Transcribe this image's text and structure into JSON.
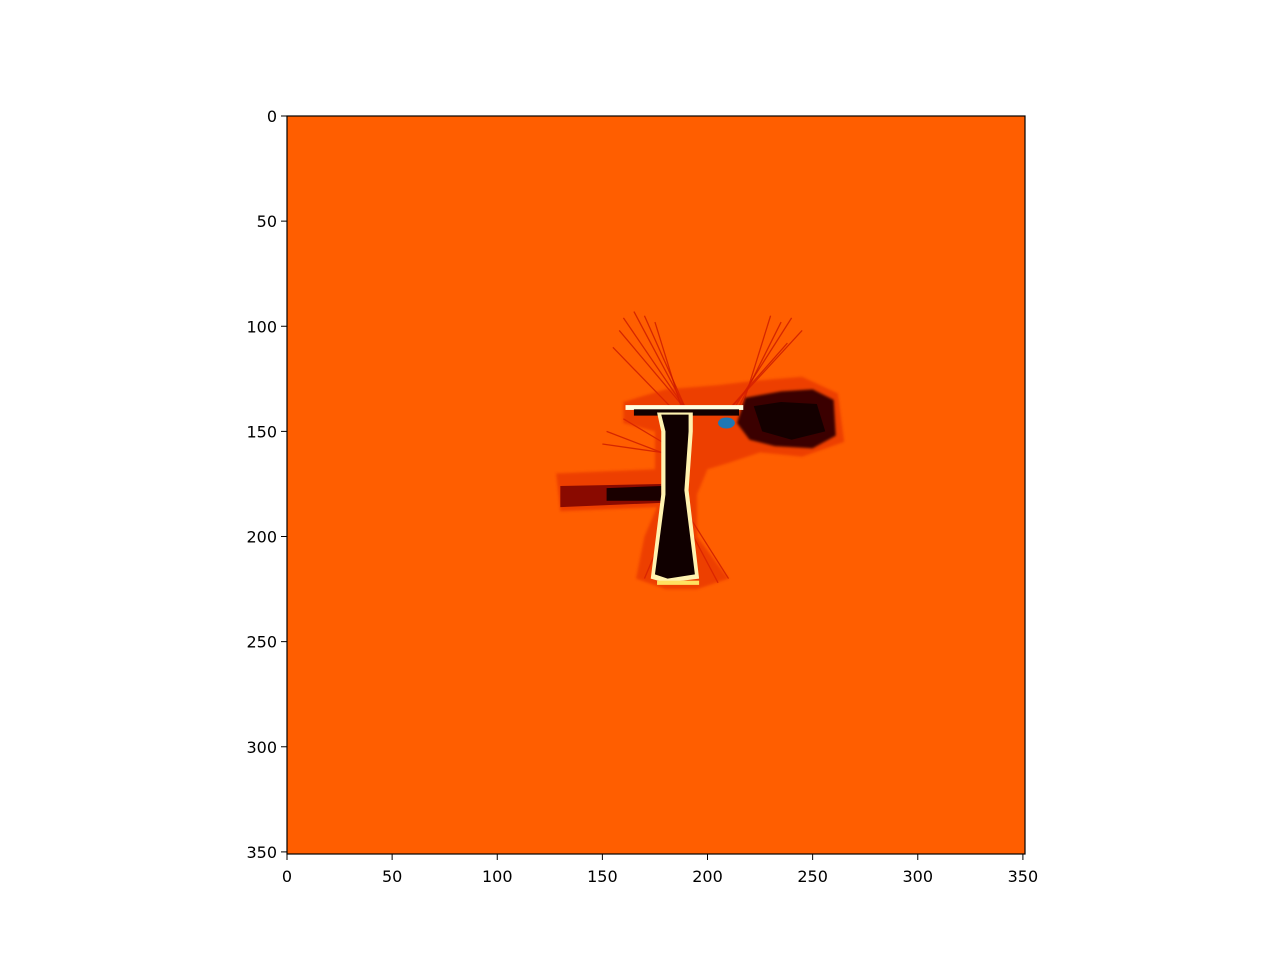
{
  "chart_data": {
    "type": "heatmap",
    "title": "",
    "xlabel": "",
    "ylabel": "",
    "xlim": [
      0,
      351
    ],
    "ylim": [
      351,
      0
    ],
    "xticks": [
      0,
      50,
      100,
      150,
      200,
      250,
      300,
      350
    ],
    "yticks": [
      0,
      50,
      100,
      150,
      200,
      250,
      300,
      350
    ],
    "colormap": "hot",
    "background_color": "#ff5e00",
    "grid": false,
    "map_features": {
      "corridor_top": {
        "x": [
          163,
          215
        ],
        "y": [
          139,
          142
        ]
      },
      "corridor_vertical": {
        "x": [
          177,
          192
        ],
        "y": [
          142,
          222
        ]
      },
      "corridor_left_branch": {
        "x": [
          128,
          178
        ],
        "y": [
          174,
          182
        ]
      },
      "dark_region_right": {
        "x": [
          220,
          262
        ],
        "y": [
          132,
          158
        ]
      }
    },
    "marker": {
      "x": 209,
      "y": 146,
      "color": "#1f77b4"
    }
  }
}
